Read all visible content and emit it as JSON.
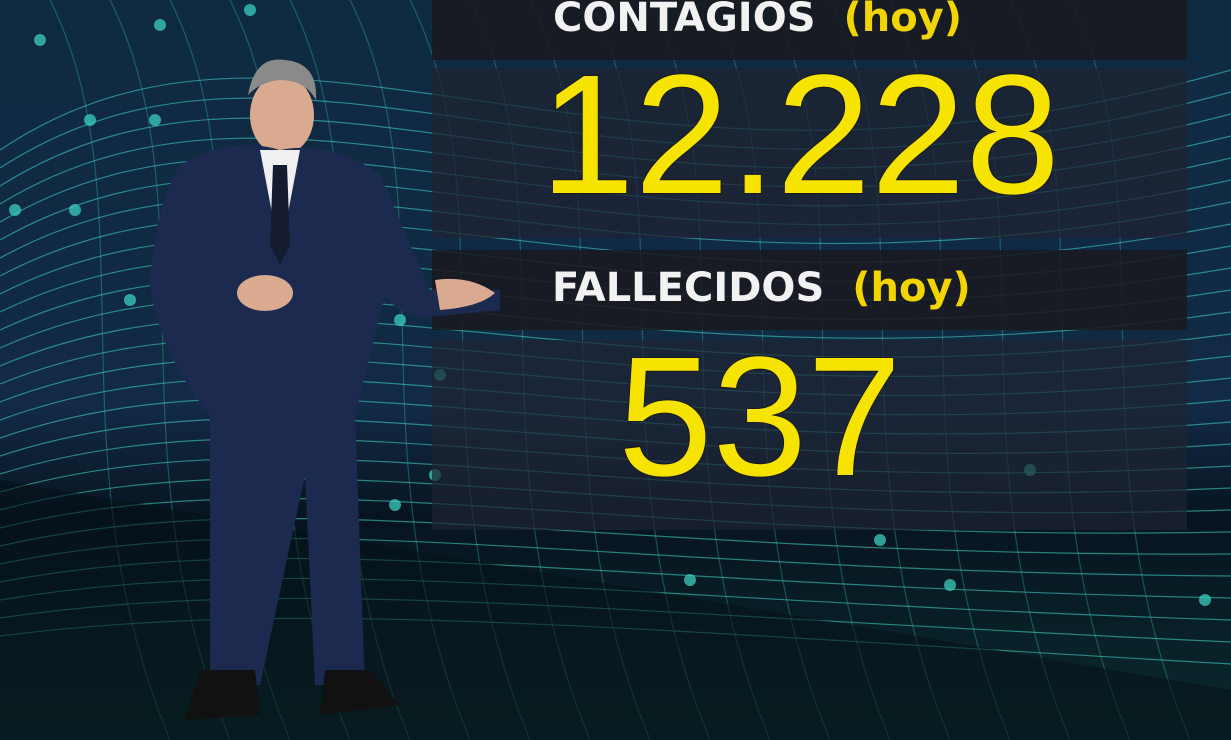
{
  "stats": {
    "contagios": {
      "label": "CONTAGIOS",
      "qualifier": "(hoy)",
      "value": "12.228"
    },
    "fallecidos": {
      "label": "FALLECIDOS",
      "qualifier": "(hoy)",
      "value": "537"
    }
  },
  "colors": {
    "value": "#f7e300",
    "label": "#f2f2f2",
    "qualifier": "#f2d500",
    "mesh": "#3fd9c9",
    "background": "#122a45"
  }
}
